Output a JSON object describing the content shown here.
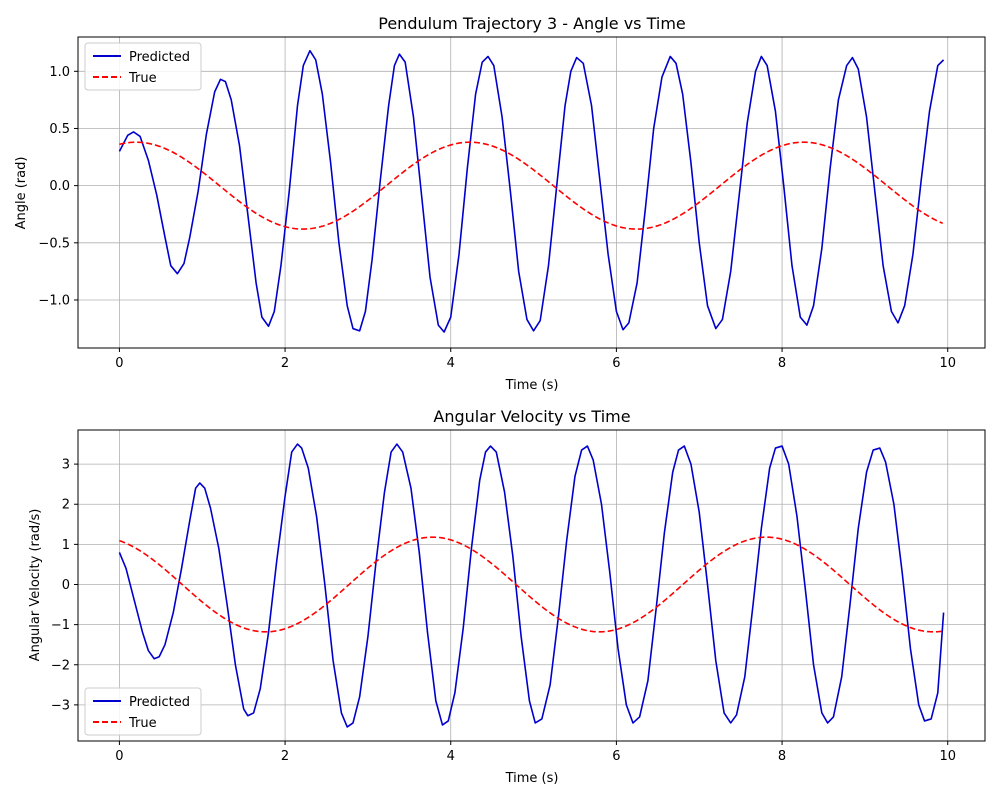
{
  "chart_data": [
    {
      "type": "line",
      "title": "Pendulum Trajectory 3 - Angle vs Time",
      "xlabel": "Time (s)",
      "ylabel": "Angle (rad)",
      "xlim": [
        -0.5,
        10.45
      ],
      "ylim": [
        -1.42,
        1.3
      ],
      "xticks": [
        0,
        2,
        4,
        6,
        8,
        10
      ],
      "xtick_labels": [
        "0",
        "2",
        "4",
        "6",
        "8",
        "10"
      ],
      "yticks": [
        -1.0,
        -0.5,
        0.0,
        0.5,
        1.0
      ],
      "ytick_labels": [
        "−1.0",
        "−0.5",
        "0.0",
        "0.5",
        "1.0"
      ],
      "grid": true,
      "legend": "top-left",
      "series": [
        {
          "name": "Predicted",
          "color": "#0000cc",
          "style": "solid",
          "points": [
            [
              0,
              0.3
            ],
            [
              0.1,
              0.44
            ],
            [
              0.17,
              0.47
            ],
            [
              0.25,
              0.43
            ],
            [
              0.35,
              0.22
            ],
            [
              0.45,
              -0.08
            ],
            [
              0.55,
              -0.45
            ],
            [
              0.62,
              -0.7
            ],
            [
              0.7,
              -0.77
            ],
            [
              0.78,
              -0.68
            ],
            [
              0.85,
              -0.45
            ],
            [
              0.95,
              -0.05
            ],
            [
              1.05,
              0.45
            ],
            [
              1.15,
              0.82
            ],
            [
              1.22,
              0.93
            ],
            [
              1.28,
              0.91
            ],
            [
              1.35,
              0.75
            ],
            [
              1.45,
              0.35
            ],
            [
              1.55,
              -0.25
            ],
            [
              1.65,
              -0.85
            ],
            [
              1.72,
              -1.15
            ],
            [
              1.8,
              -1.23
            ],
            [
              1.87,
              -1.1
            ],
            [
              1.95,
              -0.7
            ],
            [
              2.05,
              -0.05
            ],
            [
              2.15,
              0.7
            ],
            [
              2.22,
              1.05
            ],
            [
              2.3,
              1.18
            ],
            [
              2.37,
              1.1
            ],
            [
              2.45,
              0.8
            ],
            [
              2.55,
              0.2
            ],
            [
              2.65,
              -0.5
            ],
            [
              2.75,
              -1.05
            ],
            [
              2.82,
              -1.25
            ],
            [
              2.9,
              -1.27
            ],
            [
              2.97,
              -1.1
            ],
            [
              3.05,
              -0.65
            ],
            [
              3.15,
              0.05
            ],
            [
              3.25,
              0.7
            ],
            [
              3.32,
              1.05
            ],
            [
              3.38,
              1.15
            ],
            [
              3.45,
              1.08
            ],
            [
              3.55,
              0.6
            ],
            [
              3.65,
              -0.1
            ],
            [
              3.75,
              -0.8
            ],
            [
              3.85,
              -1.22
            ],
            [
              3.92,
              -1.28
            ],
            [
              4.0,
              -1.15
            ],
            [
              4.1,
              -0.6
            ],
            [
              4.2,
              0.15
            ],
            [
              4.3,
              0.8
            ],
            [
              4.38,
              1.08
            ],
            [
              4.45,
              1.13
            ],
            [
              4.52,
              1.05
            ],
            [
              4.62,
              0.6
            ],
            [
              4.72,
              -0.05
            ],
            [
              4.82,
              -0.75
            ],
            [
              4.92,
              -1.17
            ],
            [
              5.0,
              -1.27
            ],
            [
              5.08,
              -1.18
            ],
            [
              5.18,
              -0.7
            ],
            [
              5.28,
              0.0
            ],
            [
              5.38,
              0.7
            ],
            [
              5.45,
              1.0
            ],
            [
              5.52,
              1.12
            ],
            [
              5.6,
              1.07
            ],
            [
              5.7,
              0.7
            ],
            [
              5.8,
              0.05
            ],
            [
              5.9,
              -0.6
            ],
            [
              6.0,
              -1.1
            ],
            [
              6.08,
              -1.26
            ],
            [
              6.15,
              -1.2
            ],
            [
              6.25,
              -0.85
            ],
            [
              6.35,
              -0.2
            ],
            [
              6.45,
              0.5
            ],
            [
              6.55,
              0.95
            ],
            [
              6.65,
              1.13
            ],
            [
              6.72,
              1.07
            ],
            [
              6.8,
              0.8
            ],
            [
              6.9,
              0.2
            ],
            [
              7.0,
              -0.5
            ],
            [
              7.1,
              -1.05
            ],
            [
              7.2,
              -1.25
            ],
            [
              7.28,
              -1.17
            ],
            [
              7.38,
              -0.75
            ],
            [
              7.48,
              -0.1
            ],
            [
              7.58,
              0.55
            ],
            [
              7.68,
              1.0
            ],
            [
              7.75,
              1.13
            ],
            [
              7.82,
              1.05
            ],
            [
              7.92,
              0.65
            ],
            [
              8.02,
              0.0
            ],
            [
              8.12,
              -0.7
            ],
            [
              8.22,
              -1.15
            ],
            [
              8.3,
              -1.22
            ],
            [
              8.38,
              -1.05
            ],
            [
              8.48,
              -0.55
            ],
            [
              8.58,
              0.15
            ],
            [
              8.68,
              0.75
            ],
            [
              8.78,
              1.05
            ],
            [
              8.85,
              1.12
            ],
            [
              8.92,
              1.02
            ],
            [
              9.02,
              0.6
            ],
            [
              9.12,
              -0.05
            ],
            [
              9.22,
              -0.7
            ],
            [
              9.32,
              -1.1
            ],
            [
              9.4,
              -1.2
            ],
            [
              9.48,
              -1.05
            ],
            [
              9.58,
              -0.6
            ],
            [
              9.68,
              0.05
            ],
            [
              9.78,
              0.65
            ],
            [
              9.88,
              1.05
            ],
            [
              9.95,
              1.1
            ]
          ]
        },
        {
          "name": "True",
          "color": "#ff0000",
          "style": "dashed",
          "amplitude": 0.38,
          "period": 4.03,
          "phase_offset_time": 0.2,
          "t_start": 0,
          "t_end": 9.95
        }
      ]
    },
    {
      "type": "line",
      "title": "Angular Velocity vs Time",
      "xlabel": "Time (s)",
      "ylabel": "Angular Velocity (rad/s)",
      "xlim": [
        -0.5,
        10.45
      ],
      "ylim": [
        -3.9,
        3.85
      ],
      "xticks": [
        0,
        2,
        4,
        6,
        8,
        10
      ],
      "xtick_labels": [
        "0",
        "2",
        "4",
        "6",
        "8",
        "10"
      ],
      "yticks": [
        -3,
        -2,
        -1,
        0,
        1,
        2,
        3
      ],
      "ytick_labels": [
        "−3",
        "−2",
        "−1",
        "0",
        "1",
        "2",
        "3"
      ],
      "grid": true,
      "legend": "bottom-left",
      "series": [
        {
          "name": "Predicted",
          "color": "#0000cc",
          "style": "solid",
          "points": [
            [
              0,
              0.8
            ],
            [
              0.08,
              0.4
            ],
            [
              0.18,
              -0.4
            ],
            [
              0.28,
              -1.2
            ],
            [
              0.35,
              -1.65
            ],
            [
              0.42,
              -1.85
            ],
            [
              0.48,
              -1.8
            ],
            [
              0.55,
              -1.5
            ],
            [
              0.65,
              -0.7
            ],
            [
              0.75,
              0.4
            ],
            [
              0.85,
              1.6
            ],
            [
              0.92,
              2.4
            ],
            [
              0.97,
              2.53
            ],
            [
              1.03,
              2.4
            ],
            [
              1.1,
              1.9
            ],
            [
              1.2,
              0.9
            ],
            [
              1.3,
              -0.5
            ],
            [
              1.4,
              -2.0
            ],
            [
              1.5,
              -3.1
            ],
            [
              1.55,
              -3.27
            ],
            [
              1.62,
              -3.2
            ],
            [
              1.7,
              -2.6
            ],
            [
              1.8,
              -1.2
            ],
            [
              1.9,
              0.6
            ],
            [
              2.0,
              2.2
            ],
            [
              2.08,
              3.3
            ],
            [
              2.15,
              3.5
            ],
            [
              2.2,
              3.4
            ],
            [
              2.28,
              2.9
            ],
            [
              2.38,
              1.7
            ],
            [
              2.48,
              0.0
            ],
            [
              2.58,
              -1.9
            ],
            [
              2.68,
              -3.2
            ],
            [
              2.75,
              -3.55
            ],
            [
              2.82,
              -3.45
            ],
            [
              2.9,
              -2.8
            ],
            [
              3.0,
              -1.3
            ],
            [
              3.1,
              0.6
            ],
            [
              3.2,
              2.3
            ],
            [
              3.28,
              3.3
            ],
            [
              3.35,
              3.5
            ],
            [
              3.42,
              3.3
            ],
            [
              3.52,
              2.4
            ],
            [
              3.62,
              0.8
            ],
            [
              3.72,
              -1.2
            ],
            [
              3.82,
              -2.9
            ],
            [
              3.9,
              -3.5
            ],
            [
              3.97,
              -3.4
            ],
            [
              4.05,
              -2.7
            ],
            [
              4.15,
              -1.1
            ],
            [
              4.25,
              0.9
            ],
            [
              4.35,
              2.6
            ],
            [
              4.42,
              3.3
            ],
            [
              4.48,
              3.45
            ],
            [
              4.55,
              3.3
            ],
            [
              4.65,
              2.3
            ],
            [
              4.75,
              0.7
            ],
            [
              4.85,
              -1.3
            ],
            [
              4.95,
              -2.9
            ],
            [
              5.02,
              -3.45
            ],
            [
              5.1,
              -3.35
            ],
            [
              5.2,
              -2.5
            ],
            [
              5.3,
              -0.8
            ],
            [
              5.4,
              1.1
            ],
            [
              5.5,
              2.7
            ],
            [
              5.58,
              3.35
            ],
            [
              5.65,
              3.45
            ],
            [
              5.72,
              3.1
            ],
            [
              5.82,
              2.0
            ],
            [
              5.92,
              0.3
            ],
            [
              6.02,
              -1.6
            ],
            [
              6.12,
              -3.0
            ],
            [
              6.2,
              -3.45
            ],
            [
              6.28,
              -3.3
            ],
            [
              6.38,
              -2.4
            ],
            [
              6.48,
              -0.6
            ],
            [
              6.58,
              1.3
            ],
            [
              6.68,
              2.8
            ],
            [
              6.75,
              3.35
            ],
            [
              6.82,
              3.45
            ],
            [
              6.9,
              3.0
            ],
            [
              7.0,
              1.8
            ],
            [
              7.1,
              0.0
            ],
            [
              7.2,
              -1.9
            ],
            [
              7.3,
              -3.2
            ],
            [
              7.38,
              -3.45
            ],
            [
              7.45,
              -3.25
            ],
            [
              7.55,
              -2.3
            ],
            [
              7.65,
              -0.5
            ],
            [
              7.75,
              1.4
            ],
            [
              7.85,
              2.9
            ],
            [
              7.92,
              3.4
            ],
            [
              8.0,
              3.45
            ],
            [
              8.08,
              3.0
            ],
            [
              8.18,
              1.7
            ],
            [
              8.28,
              -0.1
            ],
            [
              8.38,
              -2.0
            ],
            [
              8.48,
              -3.2
            ],
            [
              8.55,
              -3.45
            ],
            [
              8.62,
              -3.3
            ],
            [
              8.72,
              -2.3
            ],
            [
              8.82,
              -0.5
            ],
            [
              8.92,
              1.4
            ],
            [
              9.02,
              2.8
            ],
            [
              9.1,
              3.35
            ],
            [
              9.18,
              3.4
            ],
            [
              9.25,
              3.05
            ],
            [
              9.35,
              2.0
            ],
            [
              9.45,
              0.3
            ],
            [
              9.55,
              -1.6
            ],
            [
              9.65,
              -3.0
            ],
            [
              9.72,
              -3.4
            ],
            [
              9.8,
              -3.35
            ],
            [
              9.88,
              -2.7
            ],
            [
              9.95,
              -0.7
            ]
          ]
        },
        {
          "name": "True",
          "color": "#ff0000",
          "style": "dashed",
          "amplitude": 1.18,
          "period": 4.03,
          "phase_offset_time": -0.25,
          "t_start": 0,
          "t_end": 9.95
        }
      ]
    }
  ]
}
